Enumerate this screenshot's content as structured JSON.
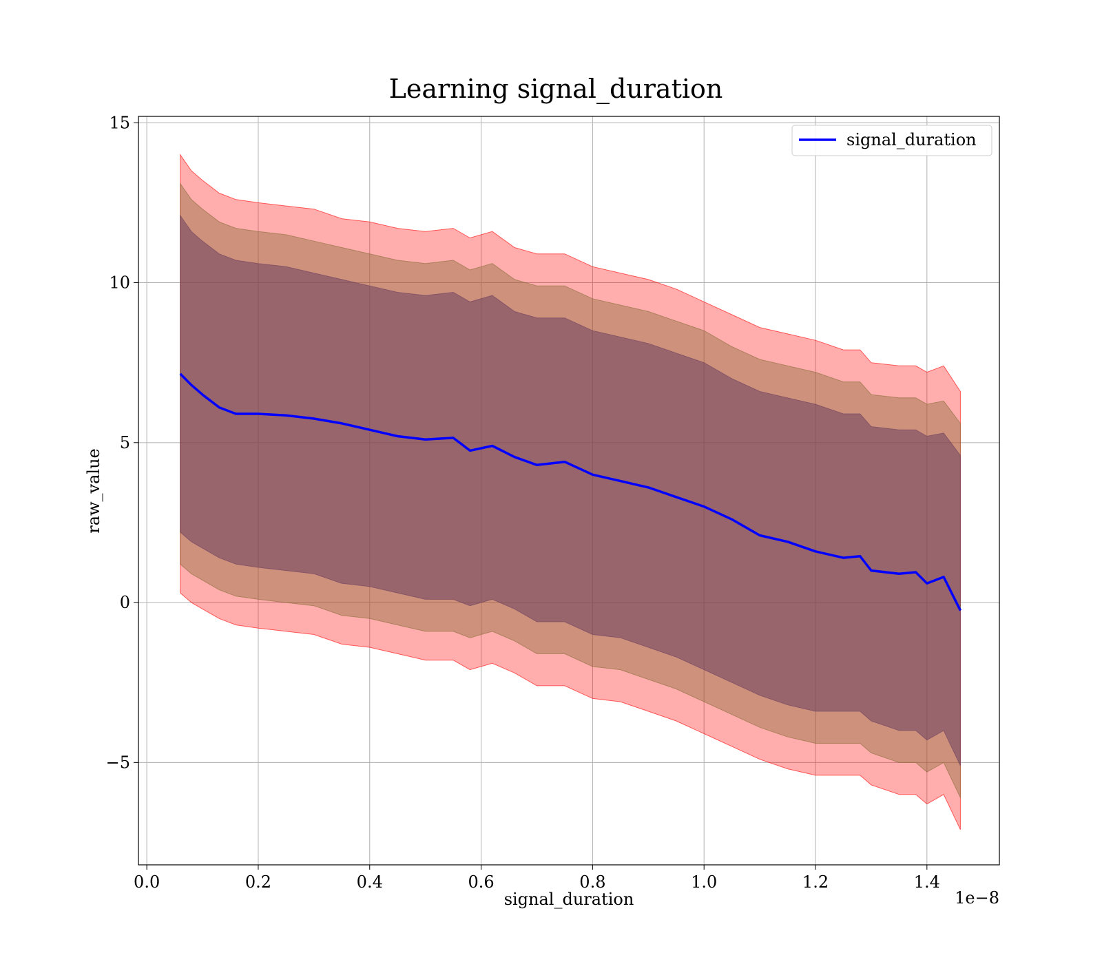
{
  "chart_data": {
    "type": "line",
    "title": "Learning signal_duration",
    "xlabel": "signal_duration",
    "ylabel": "raw_value",
    "x_offset_label": "1e−8",
    "xlim": [
      -1.5e-10,
      1.53e-08
    ],
    "ylim": [
      -8.2,
      15.2
    ],
    "x_ticks": [
      0,
      2e-09,
      4e-09,
      6e-09,
      8e-09,
      1e-08,
      1.2e-08,
      1.4e-08
    ],
    "x_tick_labels": [
      "0.0",
      "0.2",
      "0.4",
      "0.6",
      "0.8",
      "1.0",
      "1.2",
      "1.4"
    ],
    "y_ticks": [
      -5,
      0,
      5,
      10,
      15
    ],
    "y_tick_labels": [
      "−5",
      "0",
      "5",
      "10",
      "15"
    ],
    "grid": true,
    "legend": {
      "position": "top-right",
      "entries": [
        "signal_duration"
      ]
    },
    "colors": {
      "line": "#0000ff",
      "band_outer": "#ff0000",
      "band_middle": "#8b6d3a",
      "band_inner": "#6e3f5f"
    },
    "x": [
      6e-10,
      8e-10,
      1e-09,
      1.3e-09,
      1.6e-09,
      2e-09,
      2.5e-09,
      3e-09,
      3.5e-09,
      4e-09,
      4.5e-09,
      5e-09,
      5.5e-09,
      5.8e-09,
      6.2e-09,
      6.6e-09,
      7e-09,
      7.5e-09,
      8e-09,
      8.5e-09,
      9e-09,
      9.5e-09,
      1e-08,
      1.05e-08,
      1.1e-08,
      1.15e-08,
      1.2e-08,
      1.25e-08,
      1.28e-08,
      1.3e-08,
      1.35e-08,
      1.38e-08,
      1.4e-08,
      1.43e-08,
      1.46e-08
    ],
    "series": [
      {
        "name": "signal_duration",
        "y": [
          7.15,
          6.8,
          6.5,
          6.1,
          5.9,
          5.9,
          5.85,
          5.75,
          5.6,
          5.4,
          5.2,
          5.1,
          5.15,
          4.75,
          4.9,
          4.55,
          4.3,
          4.4,
          4.0,
          3.8,
          3.6,
          3.3,
          3.0,
          2.6,
          2.1,
          1.9,
          1.6,
          1.4,
          1.45,
          1.0,
          0.9,
          0.95,
          0.6,
          0.8,
          -0.25
        ],
        "bands": [
          {
            "level": "outer",
            "upper": [
              14.0,
              13.5,
              13.2,
              12.8,
              12.6,
              12.5,
              12.4,
              12.3,
              12.0,
              11.9,
              11.7,
              11.6,
              11.7,
              11.4,
              11.6,
              11.1,
              10.9,
              10.9,
              10.5,
              10.3,
              10.1,
              9.8,
              9.4,
              9.0,
              8.6,
              8.4,
              8.2,
              7.9,
              7.9,
              7.5,
              7.4,
              7.4,
              7.2,
              7.4,
              6.6
            ],
            "lower": [
              0.3,
              0.0,
              -0.2,
              -0.5,
              -0.7,
              -0.8,
              -0.9,
              -1.0,
              -1.3,
              -1.4,
              -1.6,
              -1.8,
              -1.8,
              -2.1,
              -1.9,
              -2.2,
              -2.6,
              -2.6,
              -3.0,
              -3.1,
              -3.4,
              -3.7,
              -4.1,
              -4.5,
              -4.9,
              -5.2,
              -5.4,
              -5.4,
              -5.4,
              -5.7,
              -6.0,
              -6.0,
              -6.3,
              -6.0,
              -7.1
            ]
          },
          {
            "level": "middle",
            "upper": [
              13.1,
              12.6,
              12.3,
              11.9,
              11.7,
              11.6,
              11.5,
              11.3,
              11.1,
              10.9,
              10.7,
              10.6,
              10.7,
              10.4,
              10.6,
              10.1,
              9.9,
              9.9,
              9.5,
              9.3,
              9.1,
              8.8,
              8.5,
              8.0,
              7.6,
              7.4,
              7.2,
              6.9,
              6.9,
              6.5,
              6.4,
              6.4,
              6.2,
              6.3,
              5.6
            ],
            "lower": [
              1.2,
              0.9,
              0.7,
              0.4,
              0.2,
              0.1,
              0.0,
              -0.1,
              -0.4,
              -0.5,
              -0.7,
              -0.9,
              -0.9,
              -1.1,
              -0.9,
              -1.2,
              -1.6,
              -1.6,
              -2.0,
              -2.1,
              -2.4,
              -2.7,
              -3.1,
              -3.5,
              -3.9,
              -4.2,
              -4.4,
              -4.4,
              -4.4,
              -4.7,
              -5.0,
              -5.0,
              -5.3,
              -5.0,
              -6.1
            ]
          },
          {
            "level": "inner",
            "upper": [
              12.1,
              11.6,
              11.3,
              10.9,
              10.7,
              10.6,
              10.5,
              10.3,
              10.1,
              9.9,
              9.7,
              9.6,
              9.7,
              9.4,
              9.6,
              9.1,
              8.9,
              8.9,
              8.5,
              8.3,
              8.1,
              7.8,
              7.5,
              7.0,
              6.6,
              6.4,
              6.2,
              5.9,
              5.9,
              5.5,
              5.4,
              5.4,
              5.2,
              5.3,
              4.6
            ],
            "lower": [
              2.2,
              1.9,
              1.7,
              1.4,
              1.2,
              1.1,
              1.0,
              0.9,
              0.6,
              0.5,
              0.3,
              0.1,
              0.1,
              -0.1,
              0.1,
              -0.2,
              -0.6,
              -0.6,
              -1.0,
              -1.1,
              -1.4,
              -1.7,
              -2.1,
              -2.5,
              -2.9,
              -3.2,
              -3.4,
              -3.4,
              -3.4,
              -3.7,
              -4.0,
              -4.0,
              -4.3,
              -4.0,
              -5.1
            ]
          }
        ]
      }
    ]
  }
}
